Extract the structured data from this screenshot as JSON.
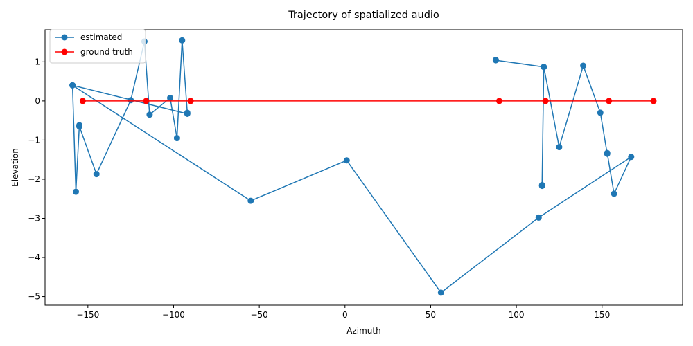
{
  "chart_data": {
    "type": "line",
    "title": "Trajectory of spatialized audio",
    "xlabel": "Azimuth",
    "ylabel": "Elevation",
    "xlim": [
      -175,
      197
    ],
    "ylim": [
      -5.22,
      1.82
    ],
    "xticks": [
      -150,
      -100,
      -50,
      0,
      50,
      100,
      150
    ],
    "xtick_labels": [
      "−150",
      "−100",
      "−50",
      "0",
      "50",
      "100",
      "150"
    ],
    "yticks": [
      1,
      0,
      -1,
      -2,
      -3,
      -4,
      -5
    ],
    "ytick_labels": [
      "1",
      "0",
      "−1",
      "−2",
      "−3",
      "−4",
      "−5"
    ],
    "grid": false,
    "legend": "top-left",
    "series": [
      {
        "name": "estimated",
        "color": "#1f77b4",
        "marker": "circle",
        "x": [
          -159,
          -157,
          -155,
          -155,
          -145,
          -125,
          -117,
          -114,
          -102,
          -98,
          -95,
          -92,
          -92,
          -159,
          -55,
          1,
          56,
          113,
          167,
          157,
          153,
          153,
          149,
          139,
          125,
          116,
          115,
          115,
          116,
          88,
          88
        ],
        "y": [
          0.4,
          -2.32,
          -0.62,
          -0.65,
          -1.87,
          0.02,
          1.52,
          -0.35,
          0.08,
          -0.95,
          1.55,
          -0.3,
          -0.33,
          0.4,
          -2.55,
          -1.52,
          -4.9,
          -2.98,
          -1.43,
          -2.37,
          -1.33,
          -1.35,
          -0.3,
          0.9,
          -1.18,
          0.87,
          -2.17,
          -2.15,
          0.87,
          1.04,
          1.05
        ]
      },
      {
        "name": "ground truth",
        "color": "#ff0000",
        "marker": "circle",
        "x": [
          -153,
          -116,
          -90,
          90,
          117,
          154,
          180
        ],
        "y": [
          0,
          0,
          0,
          0,
          0,
          0,
          0
        ]
      }
    ]
  }
}
